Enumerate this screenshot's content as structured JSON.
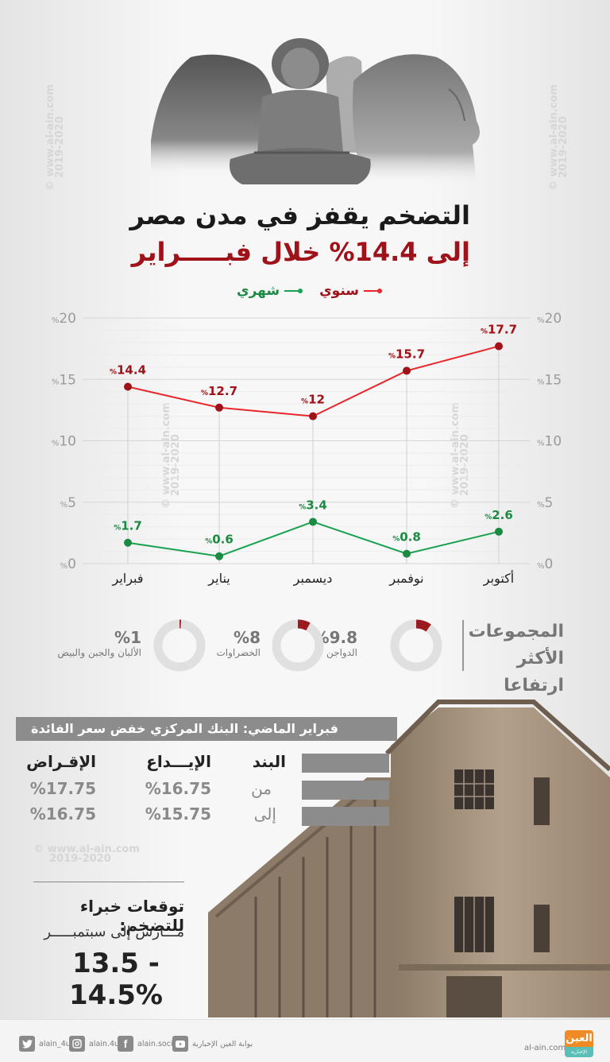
{
  "header": {
    "title_line1": "التضخم يقفز في مدن مصر",
    "title_line2": "إلى 14.4% خلال فبـــــراير"
  },
  "legend": {
    "annual": {
      "label": "سنوي",
      "color": "#a01219",
      "line_color": "#e8262b"
    },
    "monthly": {
      "label": "شهري",
      "color": "#1d8a43",
      "line_color": "#1aa150"
    }
  },
  "watermark": {
    "site": "www.al-ain.com",
    "years": "2019-2020",
    "copyright_symbol": "©"
  },
  "chart_data": {
    "type": "line",
    "title": "التضخم يقفز في مدن مصر إلى 14.4% خلال فبراير",
    "xlabel": "",
    "ylabel": "%",
    "categories": [
      "فبراير",
      "يناير",
      "ديسمبر",
      "نوفمبر",
      "أكتوبر"
    ],
    "categories_order_note": "left-to-right as rendered",
    "series": [
      {
        "name": "سنوي",
        "color": "#e8262b",
        "values": [
          14.4,
          12.7,
          12,
          15.7,
          17.7
        ]
      },
      {
        "name": "شهري",
        "color": "#1aa150",
        "values": [
          1.7,
          0.6,
          3.4,
          0.8,
          2.6
        ]
      }
    ],
    "data_labels": {
      "annual": [
        "14.4",
        "12.7",
        "12",
        "15.7",
        "17.7"
      ],
      "monthly": [
        "1.7",
        "0.6",
        "3.4",
        "0.8",
        "2.6"
      ]
    },
    "ylim": [
      0,
      20
    ],
    "yticks": [
      0,
      5,
      10,
      15,
      20
    ],
    "ytick_labels": [
      "%0",
      "%5",
      "%10",
      "%15",
      "%20"
    ],
    "grid": true,
    "legend_position": "top-center"
  },
  "groups": {
    "title_line1": "المجموعات",
    "title_line2": "الأكثر ارتفاعا",
    "items": [
      {
        "name": "الدواجن",
        "value": 9.8,
        "label": "%9.8"
      },
      {
        "name": "الخضراوات",
        "value": 8,
        "label": "%8"
      },
      {
        "name": "الألبان والجبن والبيض",
        "value": 1,
        "label": "%1"
      }
    ],
    "accent_color": "#9c1a1f",
    "track_color": "#e0e0e0"
  },
  "bank": {
    "header": "فبراير الماضي: البنك المركزي خفض سعر الفائدة",
    "columns": [
      "البند",
      "الإيـــداع",
      "الإقـراض"
    ],
    "rows": [
      {
        "label": "من",
        "deposit": "%16.75",
        "lending": "%17.75"
      },
      {
        "label": "إلى",
        "deposit": "%15.75",
        "lending": "%16.75"
      }
    ]
  },
  "forecast": {
    "title": "توقعات خبراء للتضخم:",
    "subtitle": "مـــارس إلى سبتمبـــــر",
    "value": "13.5 - 14.5%"
  },
  "footer": {
    "socials": [
      {
        "icon": "twitter-icon",
        "handle": "alain_4u"
      },
      {
        "icon": "instagram-icon",
        "handle": "alain.4u"
      },
      {
        "icon": "facebook-icon",
        "handle": "alain.social"
      },
      {
        "icon": "youtube-icon",
        "handle": "بوابة العين الإخبارية"
      }
    ],
    "site": "al-ain.com",
    "logo_text_top": "العين",
    "logo_text_bottom": "الإخبارية"
  }
}
